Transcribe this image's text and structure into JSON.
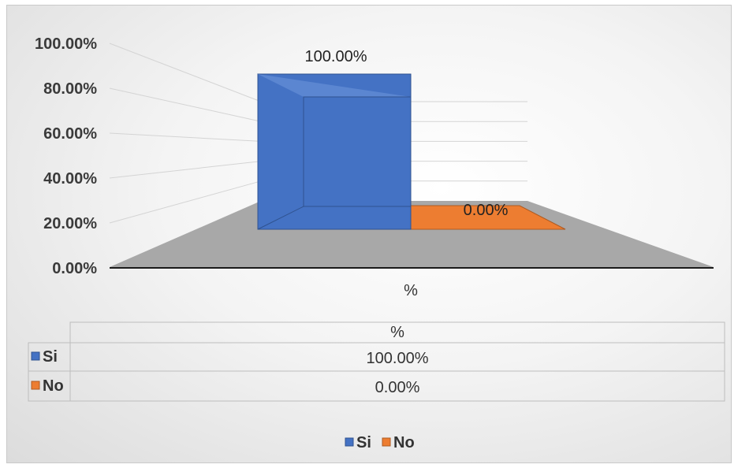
{
  "chart_data": {
    "type": "bar",
    "categories": [
      "%"
    ],
    "series": [
      {
        "name": "Si",
        "values": [
          100.0
        ],
        "color": "#4472C4",
        "label": "100.00%"
      },
      {
        "name": "No",
        "values": [
          0.0
        ],
        "color": "#ED7D31",
        "label": "0.00%"
      }
    ],
    "yticks": [
      "0.00%",
      "20.00%",
      "40.00%",
      "60.00%",
      "80.00%",
      "100.00%"
    ],
    "ylim": [
      0,
      100
    ],
    "legend_position": "bottom",
    "data_table": {
      "header": "%",
      "rows": [
        {
          "name": "Si",
          "value": "100.00%"
        },
        {
          "name": "No",
          "value": "0.00%"
        }
      ]
    }
  }
}
